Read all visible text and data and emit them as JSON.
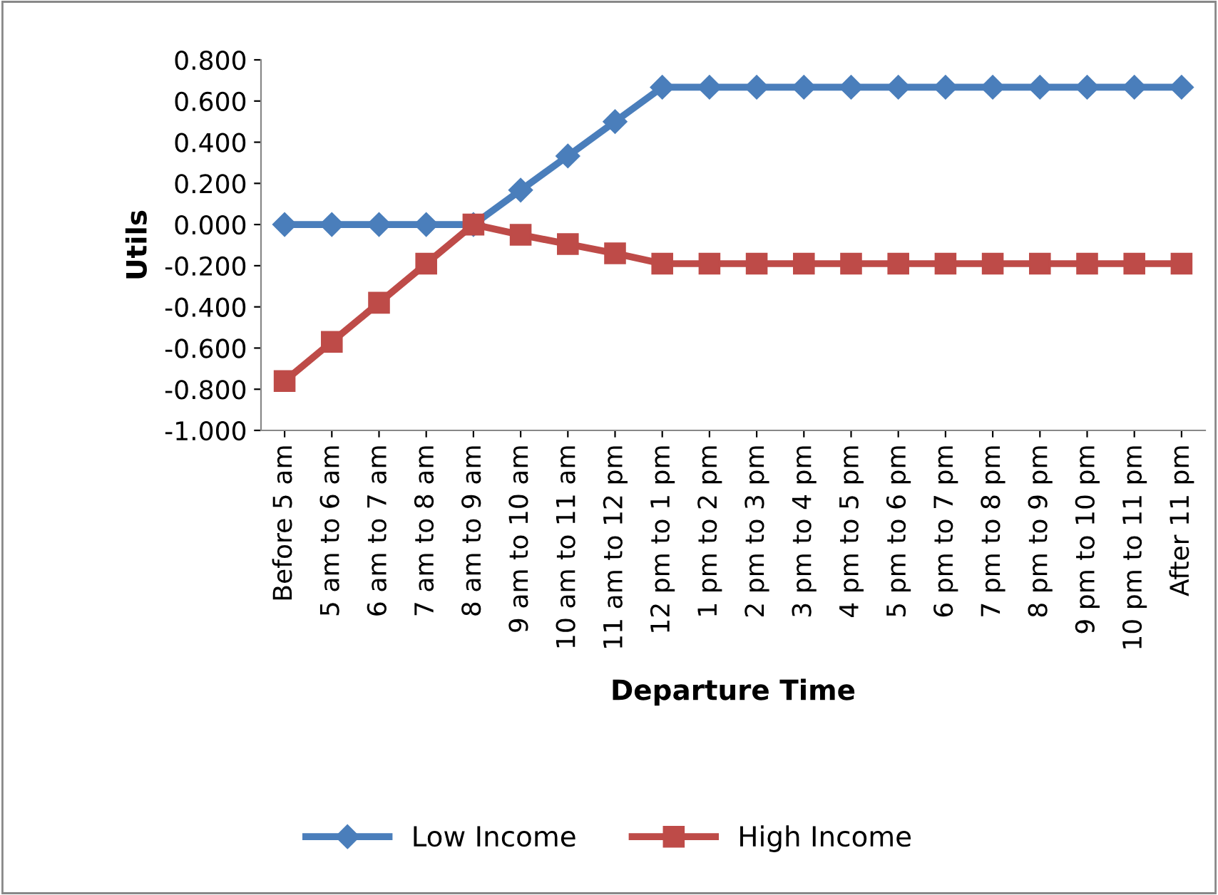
{
  "chart_data": {
    "type": "line",
    "xlabel": "Departure Time",
    "ylabel": "Utils",
    "categories": [
      "Before 5 am",
      "5 am to 6 am",
      "6 am to 7 am",
      "7 am to 8 am",
      "8 am to 9 am",
      "9 am to 10 am",
      "10 am to 11 am",
      "11 am to 12 pm",
      "12 pm to 1 pm",
      "1 pm to 2 pm",
      "2 pm to 3 pm",
      "3 pm to 4 pm",
      "4 pm to 5 pm",
      "5 pm to 6 pm",
      "6 pm to 7 pm",
      "7 pm to 8 pm",
      "8 pm to 9 pm",
      "9 pm to 10 pm",
      "10 pm to 11 pm",
      "After 11 pm"
    ],
    "series": [
      {
        "name": "Low Income",
        "color": "#4a7ebb",
        "marker": "diamond",
        "values": [
          0,
          0,
          0,
          0,
          0,
          0.167,
          0.333,
          0.5,
          0.667,
          0.667,
          0.667,
          0.667,
          0.667,
          0.667,
          0.667,
          0.667,
          0.667,
          0.667,
          0.667,
          0.667
        ]
      },
      {
        "name": "High Income",
        "color": "#be4b48",
        "marker": "square",
        "values": [
          -0.76,
          -0.57,
          -0.38,
          -0.19,
          0,
          -0.05,
          -0.095,
          -0.14,
          -0.19,
          -0.19,
          -0.19,
          -0.19,
          -0.19,
          -0.19,
          -0.19,
          -0.19,
          -0.19,
          -0.19,
          -0.19,
          -0.19
        ]
      }
    ],
    "ylim": [
      -1.0,
      0.8
    ],
    "yticks": [
      {
        "value": -1.0,
        "label": "-1.000"
      },
      {
        "value": -0.8,
        "label": "-0.800"
      },
      {
        "value": -0.6,
        "label": "-0.600"
      },
      {
        "value": -0.4,
        "label": "-0.400"
      },
      {
        "value": -0.2,
        "label": "-0.200"
      },
      {
        "value": 0,
        "label": "0.000"
      },
      {
        "value": 0.2,
        "label": "0.200"
      },
      {
        "value": 0.4,
        "label": "0.400"
      },
      {
        "value": 0.6,
        "label": "0.600"
      },
      {
        "value": 0.8,
        "label": "0.800"
      }
    ],
    "grid": false,
    "legend": "bottom",
    "line_style": "solid"
  }
}
